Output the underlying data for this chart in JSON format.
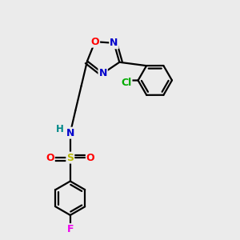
{
  "bg_color": "#ebebeb",
  "atom_colors": {
    "C": "#000000",
    "N": "#0000cc",
    "O": "#ff0000",
    "S": "#bbbb00",
    "F": "#ee00ee",
    "Cl": "#00aa00",
    "H": "#008888"
  },
  "bond_color": "#000000",
  "bond_width": 1.6,
  "fig_size": [
    3.0,
    3.0
  ],
  "dpi": 100
}
